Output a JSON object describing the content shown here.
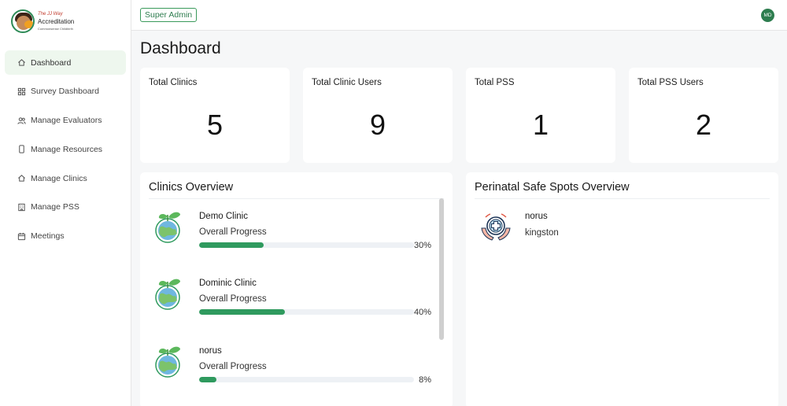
{
  "brand": {
    "line1": "The JJ Way",
    "line2": "Accreditation",
    "line3": "Commonsense Childbirth"
  },
  "sidebar": {
    "items": [
      {
        "label": "Dashboard",
        "icon": "home-icon",
        "active": true
      },
      {
        "label": "Survey Dashboard",
        "icon": "grid-icon",
        "active": false
      },
      {
        "label": "Manage Evaluators",
        "icon": "users-icon",
        "active": false
      },
      {
        "label": "Manage Resources",
        "icon": "phone-icon",
        "active": false
      },
      {
        "label": "Manage Clinics",
        "icon": "home-icon",
        "active": false
      },
      {
        "label": "Manage PSS",
        "icon": "building-icon",
        "active": false
      },
      {
        "label": "Meetings",
        "icon": "calendar-icon",
        "active": false
      }
    ]
  },
  "topbar": {
    "role": "Super Admin",
    "avatar_initials": "MD"
  },
  "page": {
    "title": "Dashboard"
  },
  "stats": [
    {
      "label": "Total Clinics",
      "value": "5"
    },
    {
      "label": "Total Clinic Users",
      "value": "9"
    },
    {
      "label": "Total PSS",
      "value": "1"
    },
    {
      "label": "Total PSS Users",
      "value": "2"
    }
  ],
  "clinics_overview": {
    "title": "Clinics Overview",
    "progress_label": "Overall Progress",
    "clinics": [
      {
        "name": "Demo Clinic",
        "progress": 30,
        "progress_text": "30%"
      },
      {
        "name": "Dominic Clinic",
        "progress": 40,
        "progress_text": "40%"
      },
      {
        "name": "norus",
        "progress": 8,
        "progress_text": "8%"
      }
    ]
  },
  "pss_overview": {
    "title": "Perinatal Safe Spots Overview",
    "items": [
      {
        "name": "norus",
        "city": "kingston"
      }
    ]
  },
  "colors": {
    "accent": "#2f9a5e",
    "active_nav_bg": "#eef7ee"
  }
}
